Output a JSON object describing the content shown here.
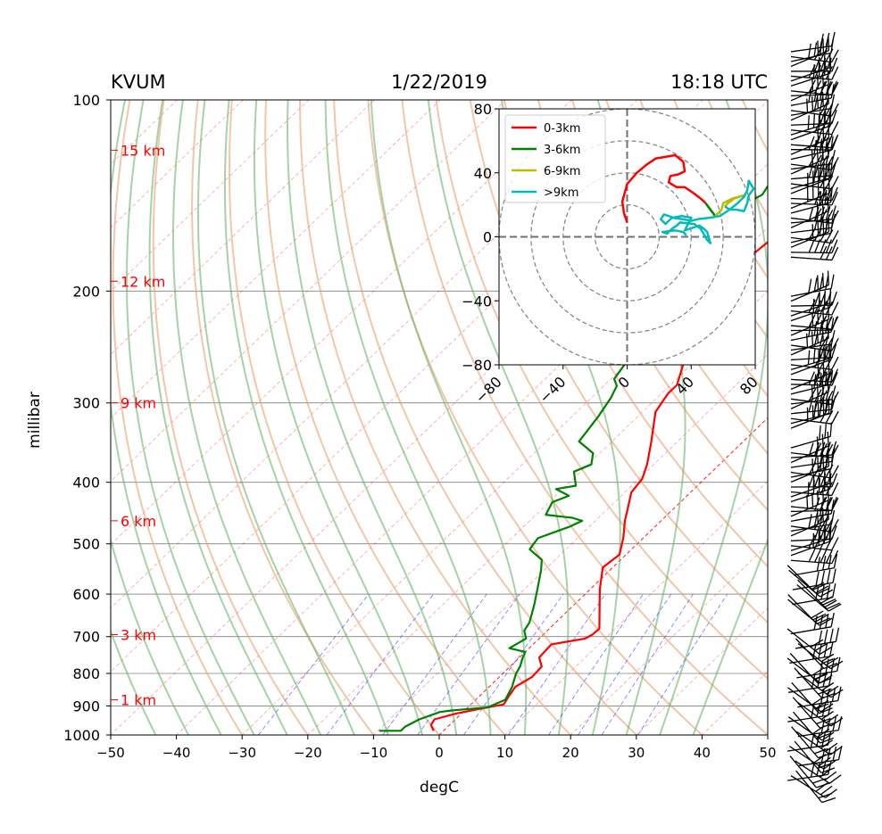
{
  "header": {
    "station": "KVUM",
    "date": "1/22/2019",
    "time": "18:18 UTC"
  },
  "chart_data": [
    {
      "type": "line",
      "kind": "skew-t",
      "xlabel": "degC",
      "ylabel": "millibar",
      "xlim": [
        -50,
        50
      ],
      "ylim": [
        1000,
        100
      ],
      "y_scale": "log",
      "x_ticks": [
        -50,
        -40,
        -30,
        -20,
        -10,
        0,
        10,
        20,
        30,
        40,
        50
      ],
      "x_tick_labels": [
        "−50",
        "−40",
        "−30",
        "−20",
        "−10",
        "0",
        "10",
        "20",
        "30",
        "40",
        "50"
      ],
      "y_ticks": [
        100,
        200,
        300,
        400,
        500,
        600,
        700,
        800,
        900,
        1000
      ],
      "y_tick_labels": [
        "100",
        "200",
        "300",
        "400",
        "500",
        "600",
        "700",
        "800",
        "900",
        "1000"
      ],
      "height_labels": [
        {
          "label": "1 km",
          "p": 880
        },
        {
          "label": "3 km",
          "p": 695
        },
        {
          "label": "6 km",
          "p": 460
        },
        {
          "label": "9 km",
          "p": 300
        },
        {
          "label": "12 km",
          "p": 193
        },
        {
          "label": "15 km",
          "p": 120
        }
      ],
      "grid": true,
      "colors": {
        "temperature": "#ff0000",
        "dewpoint": "#008000",
        "dry_adiabat": "#e8a070",
        "moist_adiabat": "#6ab46a",
        "mixing_ratio": "#4a4aff",
        "isotherm": "#ff0000",
        "height_label": "#ff0000"
      },
      "series": [
        {
          "name": "",
          "role": "temperature",
          "points": [
            [
              -1.5,
              985
            ],
            [
              -2.8,
              965
            ],
            [
              -3.2,
              945
            ],
            [
              -0.8,
              925
            ],
            [
              2.0,
              910
            ],
            [
              5.0,
              895
            ],
            [
              4.5,
              870
            ],
            [
              4.0,
              840
            ],
            [
              5.0,
              810
            ],
            [
              4.8,
              780
            ],
            [
              3.0,
              755
            ],
            [
              2.8,
              720
            ],
            [
              7.0,
              705
            ],
            [
              7.5,
              695
            ],
            [
              7.6,
              680
            ],
            [
              5.0,
              640
            ],
            [
              1.5,
              590
            ],
            [
              -1.5,
              545
            ],
            [
              -1.0,
              520
            ],
            [
              -3.0,
              490
            ],
            [
              -5.5,
              460
            ],
            [
              -7.0,
              440
            ],
            [
              -9.0,
              415
            ],
            [
              -9.5,
              395
            ],
            [
              -11.0,
              375
            ],
            [
              -14.0,
              345
            ],
            [
              -18.0,
              310
            ],
            [
              -19.0,
              290
            ],
            [
              -19.0,
              281
            ],
            [
              -22.0,
              255
            ],
            [
              -25.0,
              230
            ],
            [
              -28.0,
              209
            ],
            [
              -29.5,
              196
            ],
            [
              -30.5,
              189
            ],
            [
              -30.0,
              184
            ],
            [
              -29.5,
              178
            ],
            [
              -28.0,
              174
            ],
            [
              -27.5,
              163
            ],
            [
              -26.5,
              152
            ],
            [
              -25.0,
              145
            ],
            [
              -24.0,
              140
            ],
            [
              -22.0,
              134
            ],
            [
              -19.5,
              126
            ],
            [
              -17.5,
              121
            ],
            [
              -16.0,
              117
            ],
            [
              -15.0,
              112
            ],
            [
              -12.0,
              106
            ],
            [
              -10.0,
              102
            ],
            [
              -11.0,
              96
            ]
          ]
        },
        {
          "name": "",
          "role": "dewpoint",
          "points": [
            [
              -9.8,
              985
            ],
            [
              -6.5,
              985
            ],
            [
              -6.5,
              970
            ],
            [
              -5.5,
              945
            ],
            [
              -3.5,
              920
            ],
            [
              -2.0,
              915
            ],
            [
              3.0,
              905
            ],
            [
              4.5,
              880
            ],
            [
              3.5,
              840
            ],
            [
              2.0,
              800
            ],
            [
              1.5,
              780
            ],
            [
              0.5,
              755
            ],
            [
              0.0,
              740
            ],
            [
              -3.0,
              730
            ],
            [
              -2.0,
              705
            ],
            [
              -3.5,
              685
            ],
            [
              -4.0,
              665
            ],
            [
              -6.0,
              625
            ],
            [
              -8.0,
              590
            ],
            [
              -10.5,
              550
            ],
            [
              -12.0,
              530
            ],
            [
              -15.5,
              510
            ],
            [
              -16.0,
              490
            ],
            [
              -13.0,
              470
            ],
            [
              -12.0,
              460
            ],
            [
              -14.0,
              455
            ],
            [
              -18.5,
              450
            ],
            [
              -19.5,
              430
            ],
            [
              -18.0,
              420
            ],
            [
              -21.0,
              410
            ],
            [
              -18.5,
              405
            ],
            [
              -21.0,
              385
            ],
            [
              -19.5,
              375
            ],
            [
              -21.0,
              360
            ],
            [
              -25.0,
              345
            ],
            [
              -26.0,
              315
            ],
            [
              -27.0,
              295
            ],
            [
              -28.0,
              282
            ],
            [
              -29.5,
              275
            ],
            [
              -30.5,
              255
            ],
            [
              -33.0,
              235
            ],
            [
              -36.0,
              215
            ],
            [
              -37.0,
              200
            ],
            [
              -41.0,
              197
            ],
            [
              -36.0,
              191
            ],
            [
              -34.5,
              183
            ],
            [
              -36.0,
              176
            ],
            [
              -39.0,
              170
            ],
            [
              -44.0,
              165
            ],
            [
              -40.0,
              160
            ],
            [
              -38.0,
              153
            ],
            [
              -37.0,
              145
            ],
            [
              -36.0,
              141
            ],
            [
              -37.0,
              133
            ],
            [
              -38.0,
              128
            ],
            [
              -40.0,
              124
            ],
            [
              -41.0,
              120
            ],
            [
              -41.0,
              117
            ],
            [
              -38.0,
              112
            ],
            [
              -36.0,
              107
            ],
            [
              -33.5,
              103
            ],
            [
              -30.0,
              98
            ]
          ]
        }
      ]
    },
    {
      "type": "line",
      "kind": "hodograph",
      "xlim": [
        -80,
        80
      ],
      "ylim": [
        -80,
        80
      ],
      "x_ticks": [
        -80,
        -40,
        0,
        40,
        80
      ],
      "x_tick_labels": [
        "−80",
        "−40",
        "0",
        "40",
        "80"
      ],
      "y_ticks": [
        -80,
        -40,
        0,
        40,
        80
      ],
      "y_tick_labels": [
        "−80",
        "−40",
        "0",
        "40",
        "80"
      ],
      "rings": [
        20,
        40,
        60,
        80
      ],
      "legend": "top-left",
      "series": [
        {
          "name": "0-3km",
          "color": "#ff0000",
          "points": [
            [
              0,
              9
            ],
            [
              -2,
              15
            ],
            [
              -3,
              22
            ],
            [
              0,
              33
            ],
            [
              6,
              40
            ],
            [
              12,
              45
            ],
            [
              18,
              49
            ],
            [
              30,
              51
            ],
            [
              35,
              47
            ],
            [
              36,
              41
            ],
            [
              32,
              39
            ],
            [
              27,
              38
            ],
            [
              26,
              34
            ],
            [
              31,
              31
            ],
            [
              36,
              31
            ],
            [
              42,
              27
            ],
            [
              47,
              23
            ],
            [
              49,
              21
            ]
          ]
        },
        {
          "name": "3-6km",
          "color": "#008000",
          "points": [
            [
              49,
              21
            ],
            [
              52,
              17
            ],
            [
              55,
              13
            ]
          ]
        },
        {
          "name": "6-9km",
          "color": "#bbbb00",
          "points": [
            [
              55,
              13
            ],
            [
              59,
              17
            ],
            [
              60,
              21
            ],
            [
              66,
              24
            ],
            [
              73,
              26
            ],
            [
              67,
              24
            ],
            [
              63,
              21
            ],
            [
              61,
              19
            ]
          ]
        },
        {
          "name": ">9km",
          "color": "#00bbbb",
          "points": [
            [
              61,
              19
            ],
            [
              64,
              17
            ],
            [
              68,
              17
            ],
            [
              73,
              16
            ],
            [
              75,
              21
            ],
            [
              76,
              26
            ],
            [
              79,
              30
            ],
            [
              76,
              35
            ],
            [
              75,
              29
            ],
            [
              73,
              25
            ],
            [
              69,
              21
            ],
            [
              64,
              17
            ],
            [
              58,
              13
            ],
            [
              52,
              12
            ],
            [
              44,
              11
            ],
            [
              40,
              10
            ],
            [
              35,
              11
            ],
            [
              28,
              12
            ],
            [
              24,
              8
            ],
            [
              21,
              11
            ],
            [
              23,
              14
            ],
            [
              29,
              12
            ],
            [
              34,
              13
            ],
            [
              40,
              12
            ],
            [
              38,
              8
            ],
            [
              36,
              4
            ],
            [
              42,
              6
            ],
            [
              45,
              7
            ],
            [
              48,
              5
            ],
            [
              50,
              3
            ],
            [
              52,
              -4
            ],
            [
              50,
              -2
            ],
            [
              46,
              5
            ],
            [
              42,
              8
            ],
            [
              33,
              9
            ],
            [
              31,
              7
            ],
            [
              28,
              5
            ],
            [
              25,
              2
            ],
            [
              22,
              3
            ],
            [
              30,
              4
            ],
            [
              35,
              3
            ],
            [
              37,
              1
            ]
          ]
        }
      ]
    }
  ]
}
